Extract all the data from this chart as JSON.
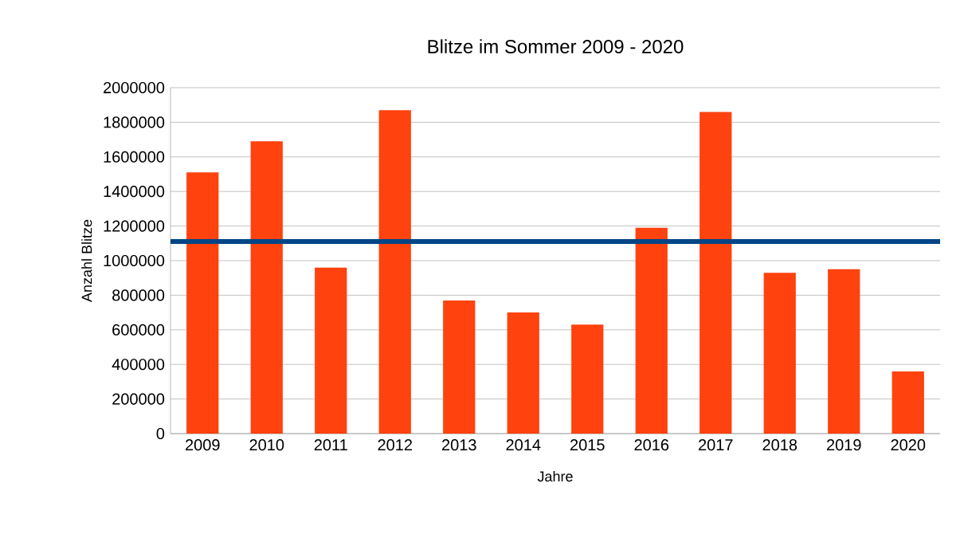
{
  "chart_data": {
    "type": "bar",
    "title": "Blitze im Sommer 2009 - 2020",
    "xlabel": "Jahre",
    "ylabel": "Anzahl Blitze",
    "categories": [
      "2009",
      "2010",
      "2011",
      "2012",
      "2013",
      "2014",
      "2015",
      "2016",
      "2017",
      "2018",
      "2019",
      "2020"
    ],
    "values": [
      1510000,
      1690000,
      960000,
      1870000,
      770000,
      700000,
      630000,
      1190000,
      1860000,
      930000,
      950000,
      360000
    ],
    "color": "#ff420e",
    "ylim": [
      0,
      2000000
    ],
    "yticks": [
      0,
      200000,
      400000,
      600000,
      800000,
      1000000,
      1200000,
      1400000,
      1600000,
      1800000,
      2000000
    ],
    "grid": "y",
    "ref_lines": [
      {
        "axis": "y",
        "value": 1110000,
        "color": "#004586"
      }
    ]
  }
}
